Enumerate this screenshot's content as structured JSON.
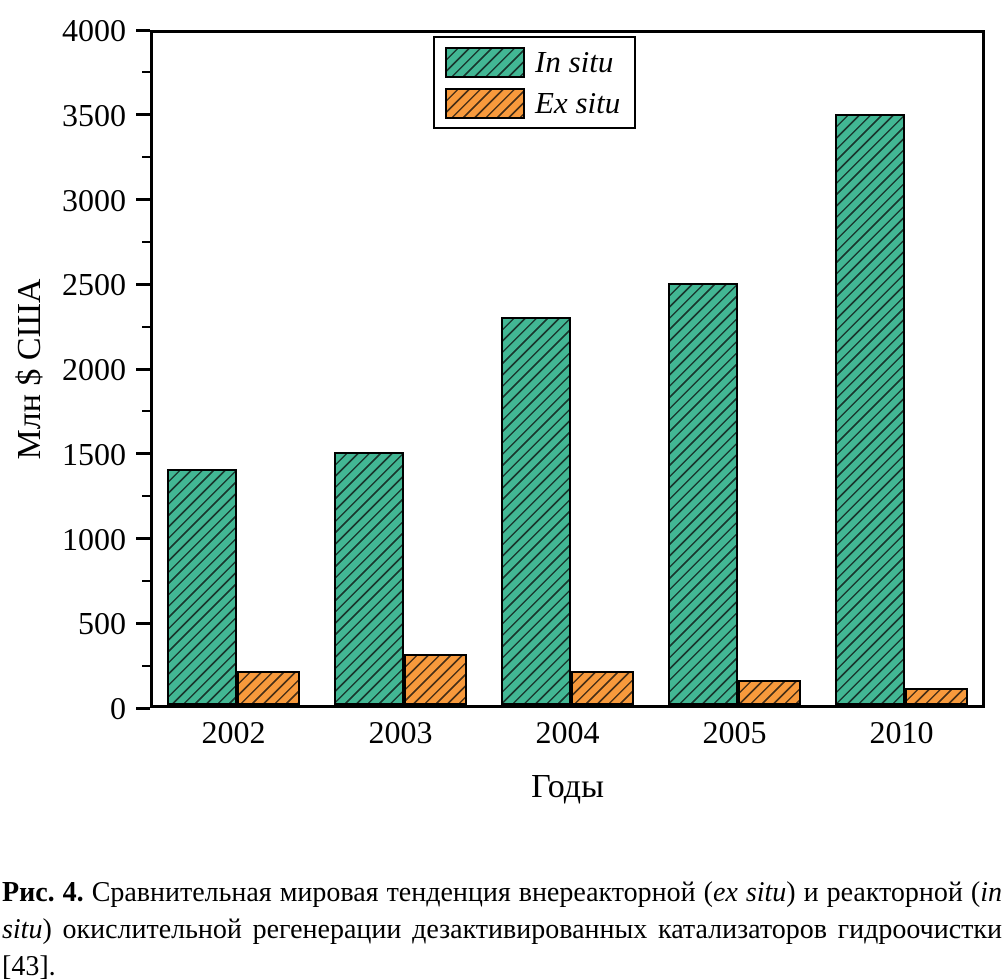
{
  "chart_data": {
    "type": "bar",
    "categories": [
      "2002",
      "2003",
      "2004",
      "2005",
      "2010"
    ],
    "series": [
      {
        "name": "In situ",
        "values": [
          1400,
          1500,
          2300,
          2500,
          3500
        ],
        "color": "#42b794",
        "hatch": "/"
      },
      {
        "name": "Ex situ",
        "values": [
          200,
          300,
          200,
          150,
          100
        ],
        "color": "#f89a3c",
        "hatch": "/"
      }
    ],
    "title": "",
    "xlabel": "Годы",
    "ylabel": "Млн $ США",
    "ylim": [
      0,
      4000
    ],
    "yticks": [
      0,
      500,
      1000,
      1500,
      2000,
      2500,
      3000,
      3500,
      4000
    ],
    "ytick_minor_step": 250,
    "grid": false,
    "legend_position": "top-center",
    "legend_items": [
      "In situ",
      "Ex situ"
    ]
  },
  "caption": {
    "label": "Рис. 4.",
    "part1": " Сравнительная мировая тенденция внереакторной (",
    "italic1": "ex situ",
    "part2": ") и реакторной (",
    "italic2": "in situ",
    "part3": ") окислительной регенерации де­зактивированных катализаторов гидроочистки [43]."
  }
}
